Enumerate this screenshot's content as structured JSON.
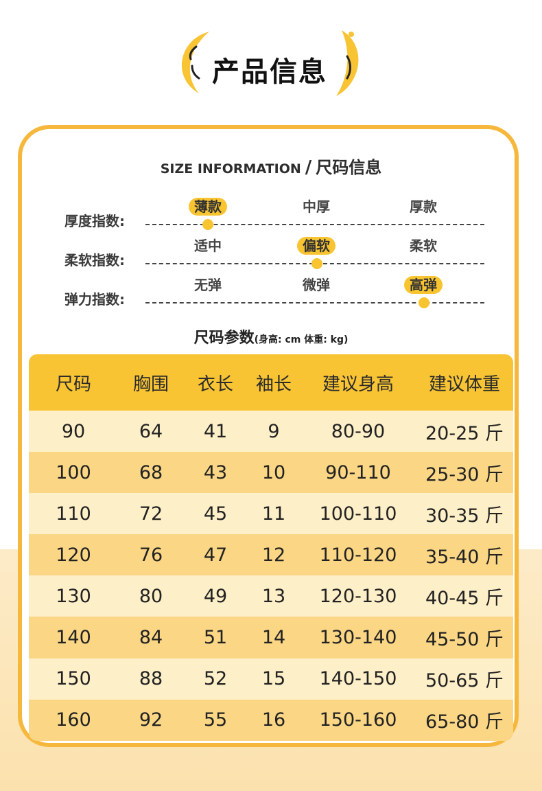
{
  "header": {
    "title": "产品信息"
  },
  "size_info": {
    "english": "SIZE INFORMATION",
    "separator": "/",
    "chinese": "尺码信息"
  },
  "indices": [
    {
      "label": "厚度指数:",
      "options": [
        "薄款",
        "中厚",
        "厚款"
      ],
      "selected": 0
    },
    {
      "label": "柔软指数:",
      "options": [
        "适中",
        "偏软",
        "柔软"
      ],
      "selected": 1
    },
    {
      "label": "弹力指数:",
      "options": [
        "无弹",
        "微弹",
        "高弹"
      ],
      "selected": 2
    }
  ],
  "params": {
    "title": "尺码参数",
    "unit": "(身高: cm 体重: kg)"
  },
  "table": {
    "headers": [
      "尺码",
      "胸围",
      "衣长",
      "袖长",
      "建议身高",
      "建议体重"
    ],
    "rows": [
      [
        "90",
        "64",
        "41",
        "9",
        "80-90",
        "20-25 斤"
      ],
      [
        "100",
        "68",
        "43",
        "10",
        "90-110",
        "25-30 斤"
      ],
      [
        "110",
        "72",
        "45",
        "11",
        "100-110",
        "30-35 斤"
      ],
      [
        "120",
        "76",
        "47",
        "12",
        "110-120",
        "35-40 斤"
      ],
      [
        "130",
        "80",
        "49",
        "13",
        "120-130",
        "40-45 斤"
      ],
      [
        "140",
        "84",
        "51",
        "14",
        "130-140",
        "45-50 斤"
      ],
      [
        "150",
        "88",
        "52",
        "15",
        "140-150",
        "50-65 斤"
      ],
      [
        "160",
        "92",
        "55",
        "16",
        "150-160",
        "65-80 斤"
      ]
    ]
  },
  "colors": {
    "accent": "#f8c433",
    "border": "#f6b83c",
    "row_light": "#fdefc8",
    "row_dark": "#fad685"
  }
}
